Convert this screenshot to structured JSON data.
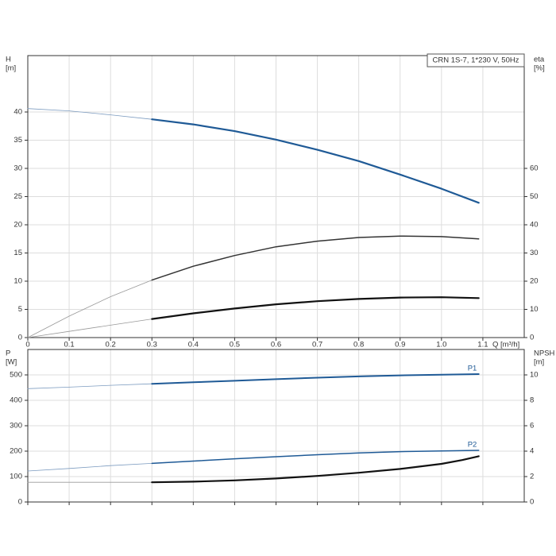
{
  "chart_data": [
    {
      "type": "line",
      "annotation": "CRN 1S-7, 1*230 V, 50Hz",
      "xlabel": "Q [m³/h]",
      "ylabel": [
        "H",
        "[m]"
      ],
      "y2label": [
        "eta",
        "[%]"
      ],
      "xlim": [
        0,
        1.2
      ],
      "xticks": [
        0,
        0.1,
        0.2,
        0.3,
        0.4,
        0.5,
        0.6,
        0.7,
        0.8,
        0.9,
        {
          "value": 1,
          "label": "1.0"
        },
        1.1
      ],
      "ylim": [
        0,
        50
      ],
      "yticks": [
        0,
        5,
        10,
        15,
        20,
        25,
        30,
        35,
        40
      ],
      "y2lim": [
        0,
        100
      ],
      "y2ticks": [
        0,
        10,
        20,
        30,
        40,
        50,
        60
      ],
      "grid": true,
      "show_xtick_labels": true,
      "series": [
        {
          "color": "#7d9cc0",
          "width": 0.8,
          "x": [
            0,
            0.1,
            0.2,
            0.3
          ],
          "values": [
            40.6,
            40.2,
            39.5,
            38.7
          ]
        },
        {
          "color": "#1f5a96",
          "width": 2.2,
          "x": [
            0.3,
            0.4,
            0.5,
            0.6,
            0.7,
            0.8,
            0.9,
            1.0,
            1.09
          ],
          "values": [
            38.7,
            37.8,
            36.6,
            35.1,
            33.3,
            31.3,
            28.9,
            26.4,
            23.9
          ]
        },
        {
          "color": "#999999",
          "width": 0.8,
          "axis": "y2",
          "x": [
            0,
            0.1,
            0.2,
            0.3
          ],
          "values": [
            0,
            7.6,
            14.5,
            20.4
          ]
        },
        {
          "color": "#333333",
          "width": 1.5,
          "axis": "y2",
          "x": [
            0.3,
            0.4,
            0.5,
            0.6,
            0.7,
            0.8,
            0.9,
            1.0,
            1.09
          ],
          "values": [
            20.4,
            25.3,
            29.1,
            32.2,
            34.2,
            35.5,
            36,
            35.8,
            35
          ]
        },
        {
          "color": "#999999",
          "width": 0.8,
          "axis": "y2",
          "x": [
            0,
            0.1,
            0.2,
            0.3
          ],
          "values": [
            0,
            2.2,
            4.4,
            6.6
          ]
        },
        {
          "color": "#111111",
          "width": 2.2,
          "axis": "y2",
          "x": [
            0.3,
            0.4,
            0.5,
            0.6,
            0.7,
            0.8,
            0.9,
            1.0,
            1.09
          ],
          "values": [
            6.6,
            8.6,
            10.3,
            11.8,
            12.9,
            13.7,
            14.2,
            14.3,
            14
          ]
        }
      ]
    },
    {
      "type": "line",
      "ylabel": [
        "P",
        "[W]"
      ],
      "y2label": [
        "NPSH",
        "[m]"
      ],
      "xlim": [
        0,
        1.2
      ],
      "xticks": [
        0,
        0.1,
        0.2,
        0.3,
        0.4,
        0.5,
        0.6,
        0.7,
        0.8,
        0.9,
        1,
        1.1
      ],
      "ylim": [
        0,
        600
      ],
      "yticks": [
        0,
        100,
        200,
        300,
        400,
        500
      ],
      "y2lim": [
        0,
        12
      ],
      "y2ticks": [
        0,
        2,
        4,
        6,
        8,
        10
      ],
      "grid": true,
      "show_xtick_labels": false,
      "series": [
        {
          "color": "#7d9cc0",
          "width": 0.8,
          "x": [
            0,
            0.1,
            0.2,
            0.3
          ],
          "values": [
            446,
            452,
            459,
            465
          ]
        },
        {
          "name": "P1",
          "color": "#1f5a96",
          "width": 2,
          "x": [
            0.3,
            0.4,
            0.5,
            0.6,
            0.7,
            0.8,
            0.9,
            1.0,
            1.09
          ],
          "values": [
            465,
            471,
            477,
            483,
            489,
            494,
            498,
            501,
            503
          ]
        },
        {
          "color": "#7d9cc0",
          "width": 0.8,
          "x": [
            0,
            0.1,
            0.2,
            0.3
          ],
          "values": [
            122,
            132,
            143,
            152
          ]
        },
        {
          "name": "P2",
          "color": "#1f5a96",
          "width": 1.5,
          "x": [
            0.3,
            0.4,
            0.5,
            0.6,
            0.7,
            0.8,
            0.9,
            1.0,
            1.09
          ],
          "values": [
            152,
            161,
            170,
            178,
            186,
            193,
            198,
            201,
            203
          ]
        },
        {
          "color": "#999999",
          "width": 0.8,
          "axis": "y2",
          "x": [
            0,
            0.1,
            0.2,
            0.3
          ],
          "values": [
            1.55,
            1.55,
            1.55,
            1.55
          ]
        },
        {
          "color": "#111111",
          "width": 2.2,
          "axis": "y2",
          "x": [
            0.3,
            0.4,
            0.5,
            0.6,
            0.7,
            0.8,
            0.9,
            1.0,
            1.05,
            1.09
          ],
          "values": [
            1.55,
            1.6,
            1.7,
            1.85,
            2.05,
            2.3,
            2.6,
            3.0,
            3.3,
            3.6
          ]
        }
      ]
    }
  ]
}
